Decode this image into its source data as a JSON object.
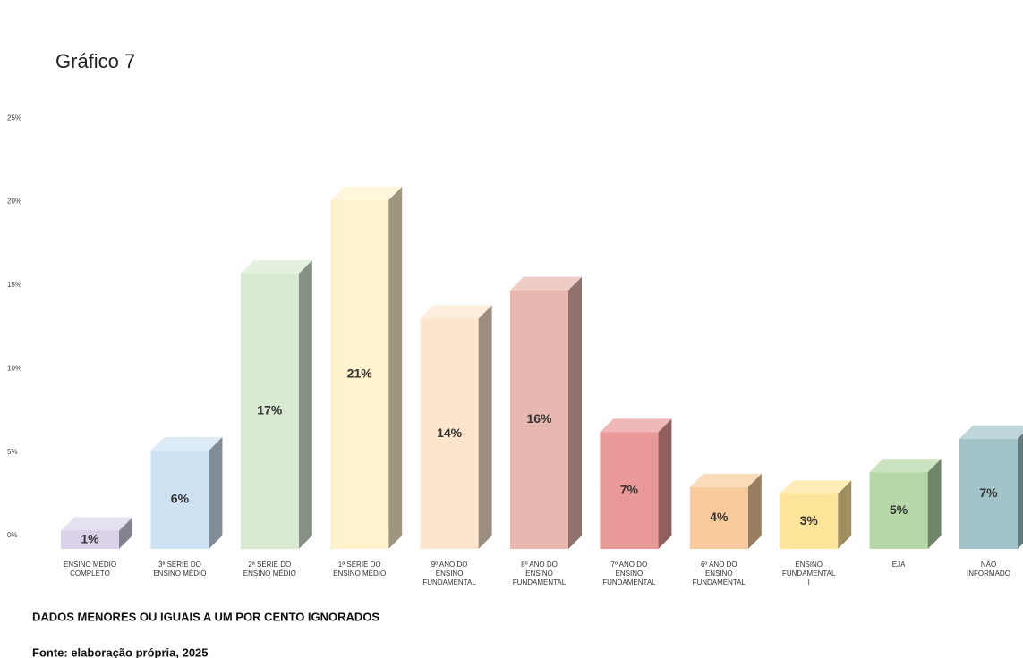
{
  "chart_data": {
    "type": "bar3d",
    "title": "Gráfico 7",
    "categories": [
      "ENSINO MÉDIO\nCOMPLETO",
      "3ª SÉRIE DO\nENSINO MÉDIO",
      "2ª SÉRIE DO\nENSINO MÉDIO",
      "1ª SÉRIE DO\nENSINO MÉDIO",
      "9º ANO DO\nENSINO\nFUNDAMENTAL",
      "8º ANO DO\nENSINO\nFUNDAMENTAL",
      "7º ANO DO\nENSINO\nFUNDAMENTAL",
      "6º ANO DO\nENSINO\nFUNDAMENTAL",
      "ENSINO\nFUNDAMENTAL\nI",
      "EJA",
      "NÃO\nINFORMADO"
    ],
    "values": [
      1.1,
      5.9,
      16.5,
      20.9,
      13.8,
      15.5,
      7.0,
      3.7,
      3.3,
      4.6,
      6.6
    ],
    "value_labels": [
      "1%",
      "6%",
      "17%",
      "21%",
      "14%",
      "16%",
      "7%",
      "4%",
      "3%",
      "5%",
      "7%"
    ],
    "colors": [
      "#d9d2e9",
      "#cfe2f3",
      "#d9ead3",
      "#fff2cc",
      "#fce5cd",
      "#e6b8af",
      "#ea9999",
      "#f9cb9c",
      "#ffe599",
      "#b6d7a8",
      "#a2c4c9"
    ],
    "ylim": [
      0,
      25
    ],
    "yticks": [
      {
        "value": 0,
        "label": "0%"
      },
      {
        "value": 5,
        "label": "5%"
      },
      {
        "value": 10,
        "label": "10%"
      },
      {
        "value": 15,
        "label": "15%"
      },
      {
        "value": 20,
        "label": "20%"
      },
      {
        "value": 25,
        "label": "25%"
      }
    ],
    "grid": false,
    "notes": [
      "DADOS MENORES OU IGUAIS A UM POR CENTO IGNORADOS",
      "Fonte: elaboração própria, 2025"
    ]
  }
}
